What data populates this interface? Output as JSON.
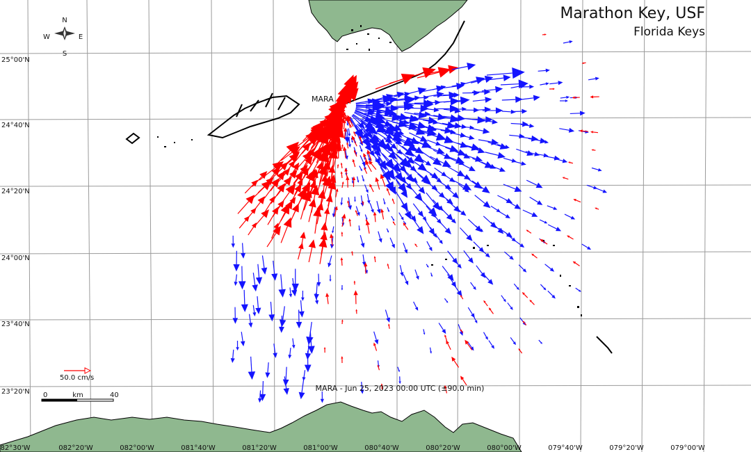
{
  "header": {
    "title": "Marathon Key, USF",
    "subtitle": "Florida Keys"
  },
  "compass": {
    "n": "N",
    "s": "S",
    "e": "E",
    "w": "W"
  },
  "station": {
    "name": "MARA"
  },
  "timestamp": "MARA - Jun 25, 2023 00:00 UTC (±90.0 min)",
  "legend": {
    "vector_label": "50.0 cm/s",
    "vector_color": "#ff0000"
  },
  "scalebar": {
    "left": "0",
    "mid": "km",
    "right": "40"
  },
  "lat_labels": [
    "25°00'N",
    "24°40'N",
    "24°20'N",
    "24°00'N",
    "23°40'N",
    "23°20'N"
  ],
  "lon_labels": [
    "82°30'W",
    "082°20'W",
    "082°00'W",
    "081°40'W",
    "081°20'W",
    "081°00'W",
    "080°40'W",
    "080°20'W",
    "080°00'W",
    "079°40'W",
    "079°20'W",
    "079°00'W"
  ],
  "colors": {
    "land": "#8fb88f",
    "toward": "#ff0000",
    "away": "#1414ff",
    "grid": "#9a9a9a"
  }
}
